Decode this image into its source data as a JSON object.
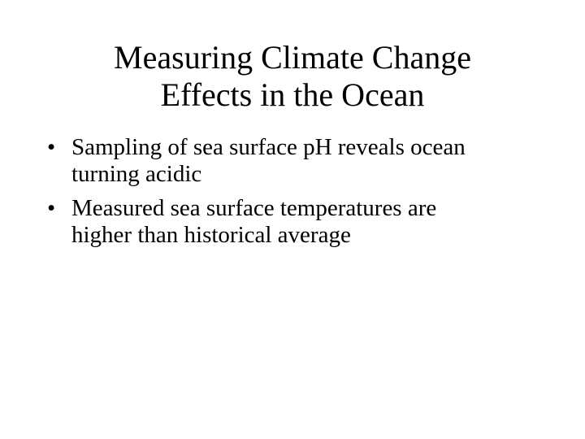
{
  "slide": {
    "title_line1": "Measuring Climate Change",
    "title_line2": "Effects in the Ocean",
    "bullet_symbol": "•",
    "bullets": [
      {
        "line1": "Sampling of sea surface pH reveals ocean",
        "line2": "turning acidic"
      },
      {
        "line1": "Measured sea surface temperatures are",
        "line2": "higher than historical average"
      }
    ]
  }
}
